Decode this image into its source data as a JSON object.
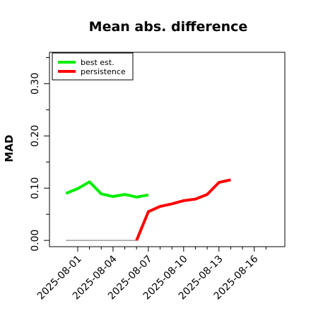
{
  "chart_data": {
    "type": "line",
    "title": "Mean abs. difference",
    "xlabel": "",
    "ylabel": "MAD",
    "xlim": [
      -1.4,
      18.6
    ],
    "ylim": [
      -0.012,
      0.36
    ],
    "y_ticks": [
      0.0,
      0.1,
      0.2,
      0.3
    ],
    "y_tick_labels": [
      "0.00",
      "0.10",
      "0.20",
      "0.30"
    ],
    "y_minor_ticks": [
      0.05,
      0.15,
      0.25,
      0.35
    ],
    "x_ticks": [
      1,
      4,
      7,
      10,
      13,
      16
    ],
    "x_tick_labels": [
      "2025-08-01",
      "2025-08-04",
      "2025-08-07",
      "2025-08-10",
      "2025-08-13",
      "2025-08-16"
    ],
    "x_minor_ticks": [
      2,
      3,
      5,
      6,
      8,
      9,
      11,
      12,
      14,
      15,
      17
    ],
    "grid": false,
    "legend_position": "top-left",
    "series": [
      {
        "name": "best est.",
        "color": "#00ee00",
        "x": [
          0,
          1,
          2,
          3,
          4,
          5,
          6,
          7
        ],
        "y": [
          0.09,
          0.099,
          0.112,
          0.089,
          0.084,
          0.088,
          0.083,
          0.087
        ]
      },
      {
        "name": "persistence",
        "color": "#ff0000",
        "x": [
          6,
          7,
          8,
          9,
          10,
          11,
          12,
          13,
          14
        ],
        "y": [
          0.0,
          0.055,
          0.065,
          0.07,
          0.076,
          0.079,
          0.088,
          0.111,
          0.116
        ]
      }
    ],
    "baseline": {
      "color": "#888888",
      "x": [
        0,
        6
      ],
      "y": [
        0.0,
        0.0
      ]
    }
  }
}
